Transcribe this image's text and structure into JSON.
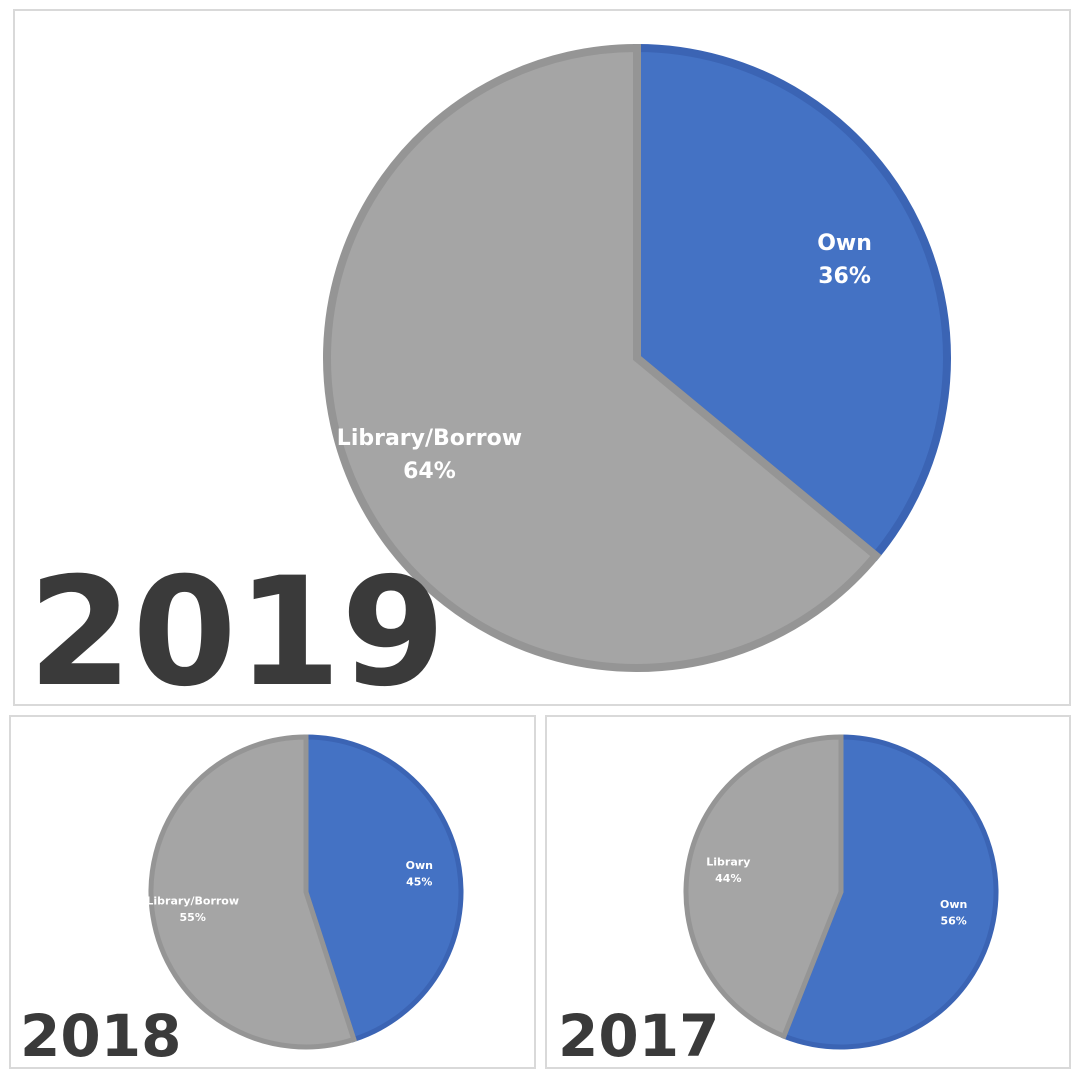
{
  "chart_data": [
    {
      "type": "pie",
      "title": "2019",
      "categories": [
        "Own",
        "Library/Borrow"
      ],
      "values": [
        36,
        64
      ],
      "value_labels": [
        "36%",
        "64%"
      ],
      "colors": [
        "#4472c4",
        "#a5a5a5"
      ]
    },
    {
      "type": "pie",
      "title": "2018",
      "categories": [
        "Own",
        "Library/Borrow"
      ],
      "values": [
        45,
        55
      ],
      "value_labels": [
        "45%",
        "55%"
      ],
      "colors": [
        "#4472c4",
        "#a5a5a5"
      ]
    },
    {
      "type": "pie",
      "title": "2017",
      "categories": [
        "Own",
        "Library"
      ],
      "values": [
        56,
        44
      ],
      "value_labels": [
        "56%",
        "44%"
      ],
      "colors": [
        "#4472c4",
        "#a5a5a5"
      ]
    }
  ]
}
